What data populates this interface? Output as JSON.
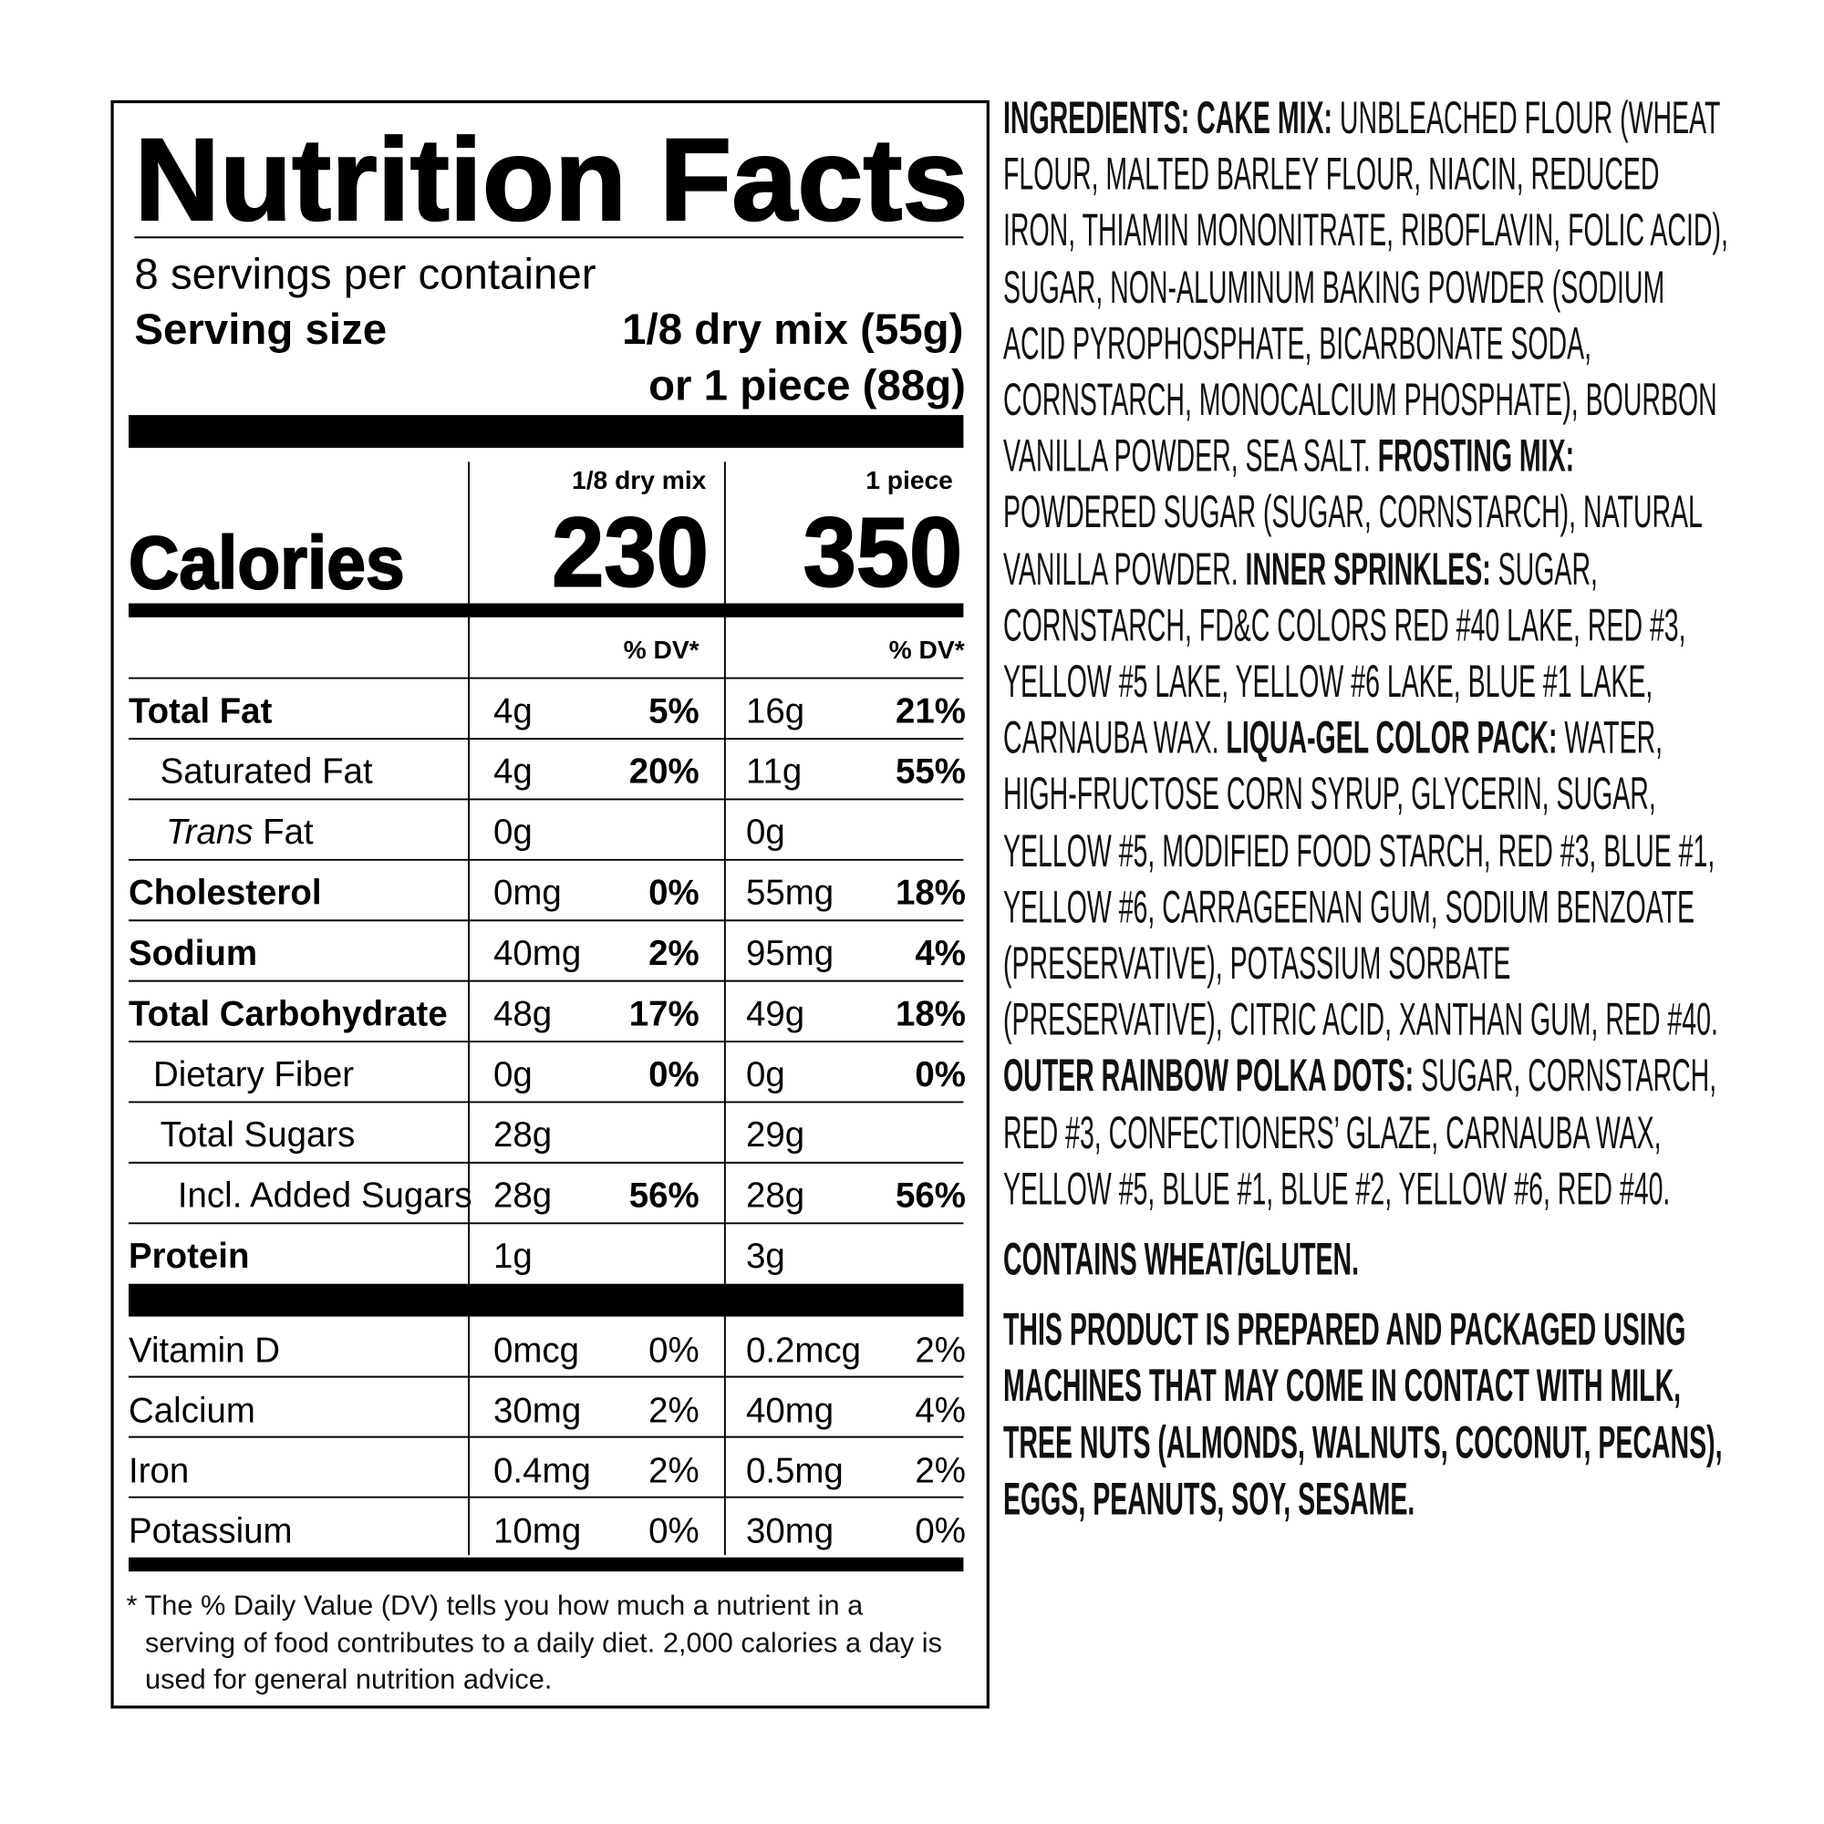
{
  "nutrition_facts": {
    "title": "Nutrition Facts",
    "servings": "8 servings per container",
    "serving_size_label": "Serving size",
    "serving_size_value": [
      "1/8 dry mix (55g)",
      "or 1 piece (88g)"
    ],
    "calories_label": "Calories",
    "columns": [
      {
        "header": "1/8 dry mix",
        "calories": "230",
        "dv_header": "% DV*"
      },
      {
        "header": "1 piece",
        "calories": "350",
        "dv_header": "% DV*"
      }
    ],
    "nutrients": [
      {
        "name": "Total Fat",
        "values": [
          {
            "amount": "4g",
            "dv": "5%"
          },
          {
            "amount": "16g",
            "dv": "21%"
          }
        ]
      },
      {
        "name": "Saturated Fat",
        "values": [
          {
            "amount": "4g",
            "dv": "20%"
          },
          {
            "amount": "11g",
            "dv": "55%"
          }
        ]
      },
      {
        "name_italic": "Trans",
        "name": " Fat",
        "values": [
          {
            "amount": "0g"
          },
          {
            "amount": "0g"
          }
        ]
      },
      {
        "name": "Cholesterol",
        "values": [
          {
            "amount": "0mg",
            "dv": "0%"
          },
          {
            "amount": "55mg",
            "dv": "18%"
          }
        ]
      },
      {
        "name": "Sodium",
        "values": [
          {
            "amount": "40mg",
            "dv": "2%"
          },
          {
            "amount": "95mg",
            "dv": "4%"
          }
        ]
      },
      {
        "name": "Total Carbohydrate",
        "values": [
          {
            "amount": "48g",
            "dv": "17%"
          },
          {
            "amount": "49g",
            "dv": "18%"
          }
        ]
      },
      {
        "name": "Dietary Fiber",
        "values": [
          {
            "amount": "0g",
            "dv": "0%"
          },
          {
            "amount": "0g",
            "dv": "0%"
          }
        ]
      },
      {
        "name": "Total Sugars",
        "values": [
          {
            "amount": "28g"
          },
          {
            "amount": "29g"
          }
        ]
      },
      {
        "name": "Incl. Added Sugars",
        "values": [
          {
            "amount": "28g",
            "dv": "56%"
          },
          {
            "amount": "28g",
            "dv": "56%"
          }
        ]
      },
      {
        "name": "Protein",
        "values": [
          {
            "amount": "1g"
          },
          {
            "amount": "3g"
          }
        ]
      }
    ],
    "vitamins": [
      {
        "name": "Vitamin D",
        "values": [
          {
            "amount": "0mcg",
            "dv": "0%"
          },
          {
            "amount": "0.2mcg",
            "dv": "2%"
          }
        ]
      },
      {
        "name": "Calcium",
        "values": [
          {
            "amount": "30mg",
            "dv": "2%"
          },
          {
            "amount": "40mg",
            "dv": "4%"
          }
        ]
      },
      {
        "name": "Iron",
        "values": [
          {
            "amount": "0.4mg",
            "dv": "2%"
          },
          {
            "amount": "0.5mg",
            "dv": "2%"
          }
        ]
      },
      {
        "name": "Potassium",
        "values": [
          {
            "amount": "10mg",
            "dv": "0%"
          },
          {
            "amount": "30mg",
            "dv": "0%"
          }
        ]
      }
    ],
    "footnote": "* The % Daily Value (DV) tells you how much a nutrient in a serving of food contributes to a daily diet. 2,000 calories a day is used for general nutrition advice."
  },
  "ingredients": {
    "paragraphs": [
      [
        {
          "heading": "INGREDIENTS: CAKE MIX:"
        },
        {
          "text": " UNBLEACHED FLOUR (WHEAT FLOUR, MALTED BARLEY FLOUR, NIACIN, REDUCED IRON, THIAMIN MONONITRATE, RIBOFLAVIN, FOLIC ACID), SUGAR, NON-ALUMINUM BAKING POWDER (SODIUM ACID PYROPHOSPHATE, BICARBONATE SODA, CORNSTARCH, MONOCALCIUM PHOSPHATE), BOURBON VANILLA POWDER, SEA SALT. "
        },
        {
          "heading": "FROSTING MIX:"
        },
        {
          "text": " POWDERED SUGAR (SUGAR, CORNSTARCH), NATURAL VANILLA POWDER. "
        },
        {
          "heading": "INNER SPRINKLES:"
        },
        {
          "text": " SUGAR, CORNSTARCH, FD&C COLORS RED #40 LAKE, RED #3, YELLOW #5 LAKE, YELLOW #6 LAKE, BLUE #1 LAKE, CARNAUBA WAX. "
        },
        {
          "heading": "LIQUA-GEL COLOR PACK:"
        },
        {
          "text": " WATER, HIGH-FRUCTOSE CORN SYRUP, GLYCERIN, SUGAR, YELLOW #5, MODIFIED FOOD STARCH, RED #3, BLUE #1, YELLOW #6, CARRAGEENAN GUM, SODIUM BENZOATE (PRESERVATIVE), POTASSIUM SORBATE (PRESERVATIVE), CITRIC ACID, XANTHAN GUM, RED #40. "
        },
        {
          "heading": "OUTER RAINBOW POLKA DOTS:"
        },
        {
          "text": " SUGAR, CORNSTARCH, RED #3, CONFECTIONERS’ GLAZE, CARNAUBA WAX, YELLOW #5, BLUE #1, BLUE #2, YELLOW #6, RED #40."
        }
      ],
      [
        {
          "heading": "CONTAINS WHEAT/GLUTEN."
        }
      ],
      [
        {
          "heading": "THIS PRODUCT IS PREPARED AND PACKAGED USING MACHINES THAT MAY COME IN CONTACT WITH MILK, TREE NUTS (ALMONDS, WALNUTS, COCONUT, PECANS), EGGS, PEANUTS, SOY, SESAME."
        }
      ]
    ]
  }
}
